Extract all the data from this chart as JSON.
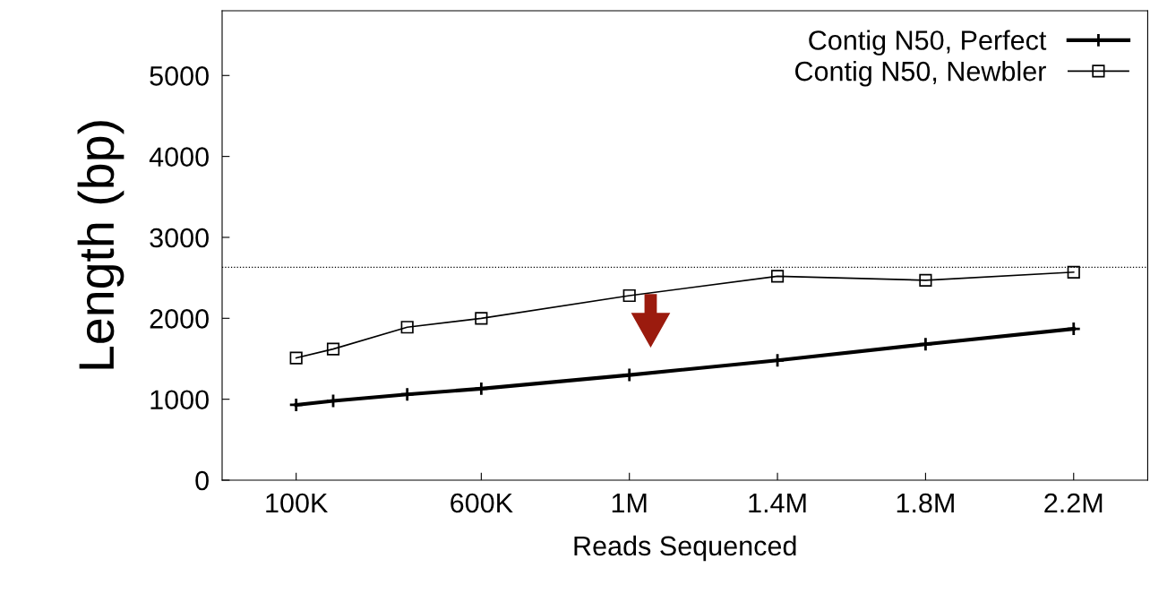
{
  "chart_data": {
    "type": "line",
    "xlabel": "Reads Sequenced",
    "ylabel": "Length (bp)",
    "series": [
      {
        "name": "Contig N50, Perfect",
        "color": "#000000",
        "marker": "cross",
        "x": [
          100000,
          200000,
          400000,
          600000,
          1000000,
          1400000,
          1800000,
          2200000
        ],
        "values": [
          930,
          980,
          1060,
          1130,
          1300,
          1480,
          1680,
          1870
        ]
      },
      {
        "name": "Contig N50, Newbler",
        "color": "#000000",
        "marker": "square",
        "x": [
          100000,
          200000,
          400000,
          600000,
          1000000,
          1400000,
          1800000,
          2200000
        ],
        "values": [
          1510,
          1620,
          1890,
          2000,
          2280,
          2520,
          2470,
          2570
        ]
      }
    ],
    "xlim": [
      -100000,
      2400000
    ],
    "xticks": [
      {
        "value": 100000,
        "label": "100K"
      },
      {
        "value": 600000,
        "label": "600K"
      },
      {
        "value": 1000000,
        "label": "1M"
      },
      {
        "value": 1400000,
        "label": "1.4M"
      },
      {
        "value": 1800000,
        "label": "1.8M"
      },
      {
        "value": 2200000,
        "label": "2.2M"
      }
    ],
    "ylim": [
      0,
      5800
    ],
    "yticks": [
      0,
      1000,
      2000,
      3000,
      4000,
      5000
    ],
    "ref_lines": [
      {
        "axis": "y",
        "value": 2630,
        "color": "#000000",
        "line_style": "dotted"
      }
    ],
    "legend": "top right",
    "grid": false
  }
}
